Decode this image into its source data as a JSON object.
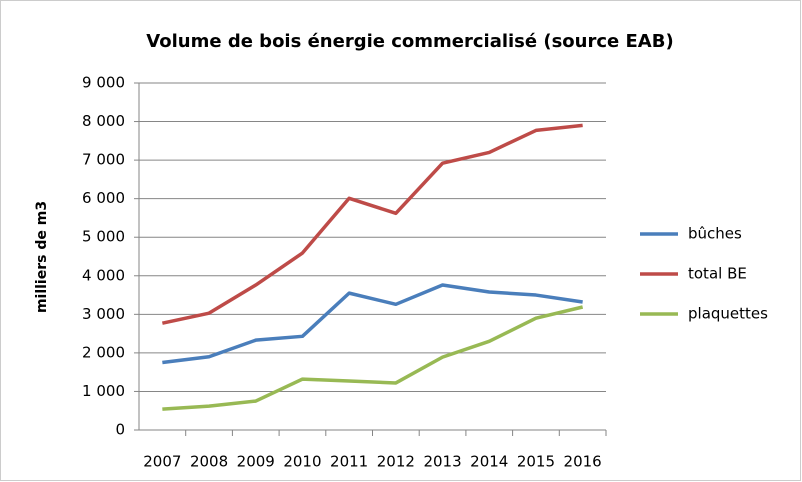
{
  "chart_data": {
    "type": "line",
    "title": "Volume de bois énergie commercialisé (source EAB)",
    "ylabel": "milliers de m3",
    "categories": [
      "2007",
      "2008",
      "2009",
      "2010",
      "2011",
      "2012",
      "2013",
      "2014",
      "2015",
      "2016"
    ],
    "series": [
      {
        "name": "bûches",
        "color": "#4a7ebb",
        "values": [
          1750,
          1900,
          2330,
          2430,
          3550,
          3260,
          3760,
          3580,
          3500,
          3320
        ]
      },
      {
        "name": "total BE",
        "color": "#be4b48",
        "values": [
          2770,
          3030,
          3760,
          4590,
          6010,
          5620,
          6920,
          7200,
          7770,
          7900
        ]
      },
      {
        "name": "plaquettes",
        "color": "#98b954",
        "values": [
          540,
          620,
          750,
          1320,
          1270,
          1220,
          1890,
          2300,
          2900,
          3190
        ]
      }
    ],
    "ylim": [
      0,
      9000
    ],
    "yticks": [
      0,
      {
        "value": 1000,
        "label": "1 000"
      },
      {
        "value": 2000,
        "label": "2 000"
      },
      {
        "value": 3000,
        "label": "3 000"
      },
      {
        "value": 4000,
        "label": "4 000"
      },
      {
        "value": 5000,
        "label": "5 000"
      },
      {
        "value": 6000,
        "label": "6 000"
      },
      {
        "value": 7000,
        "label": "7 000"
      },
      {
        "value": 8000,
        "label": "8 000"
      },
      {
        "value": 9000,
        "label": "9 000"
      }
    ],
    "grid": true,
    "legend": "right"
  }
}
